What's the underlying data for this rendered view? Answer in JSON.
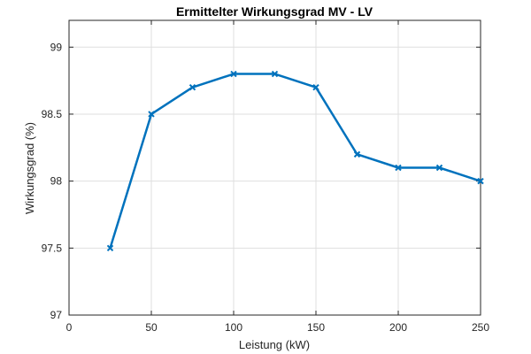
{
  "chart_data": {
    "type": "line",
    "title": "Ermittelter Wirkungsgrad MV - LV",
    "xlabel": "Leistung (kW)",
    "ylabel": "Wirkungsgrad (%)",
    "xlim": [
      0,
      250
    ],
    "ylim": [
      97,
      99.2
    ],
    "xticks": [
      0,
      50,
      100,
      150,
      200,
      250
    ],
    "yticks": [
      97,
      97.5,
      98,
      98.5,
      99
    ],
    "xtick_labels": [
      "0",
      "50",
      "100",
      "150",
      "200",
      "250"
    ],
    "ytick_labels": [
      "97",
      "97.5",
      "98",
      "98.5",
      "99"
    ],
    "grid": true,
    "series": [
      {
        "color": "#0072BD",
        "marker": "x",
        "x": [
          25,
          50,
          75,
          100,
          125,
          150,
          175,
          200,
          225,
          250
        ],
        "y": [
          97.5,
          98.5,
          98.7,
          98.8,
          98.8,
          98.7,
          98.2,
          98.1,
          98.1,
          98.0
        ]
      }
    ]
  }
}
